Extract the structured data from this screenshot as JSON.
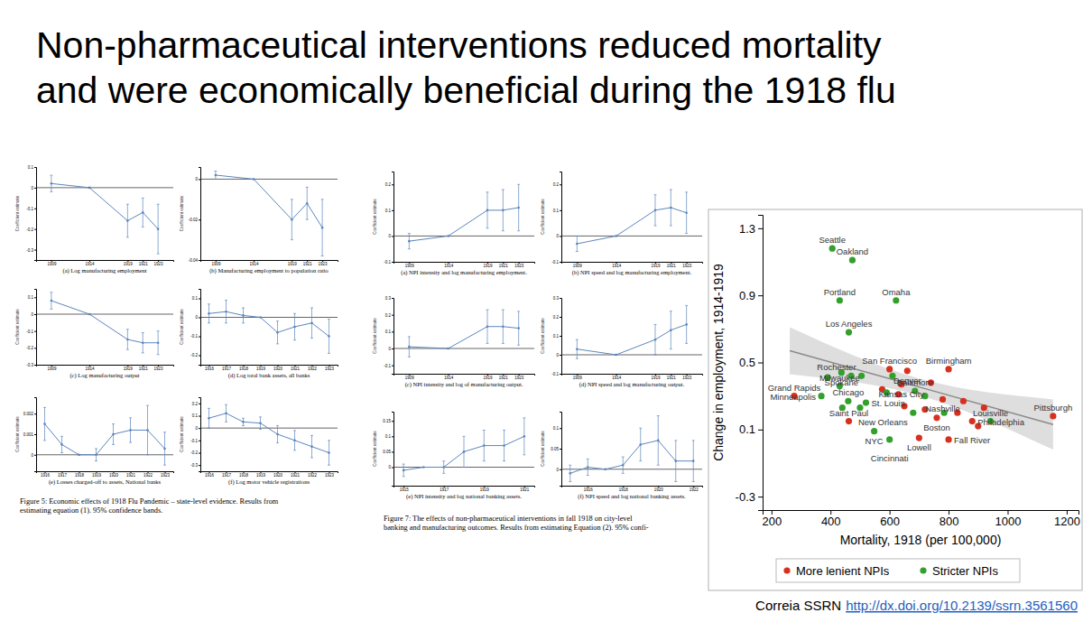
{
  "slide": {
    "title": [
      "Non-pharmaceutical interventions reduced mortality",
      "and were economically beneficial during the 1918 flu"
    ],
    "captions": [
      [
        "Figure 5: Economic effects of 1918 Flu Pandemic – state-level evidence. Results from",
        "estimating equation (1). 95% confidence bands."
      ],
      [
        "Figure 7: The effects of non-pharmaceutical interventions in fall 1918 on city-level",
        "banking and manufacturing outcomes. Results from estimating Equation (2). 95% confi-"
      ]
    ],
    "source": "Correia SSRN",
    "link": "http://dx.doi.org/10.2139/ssrn.3561560"
  },
  "chart_data": [
    {
      "type": "line",
      "title": "(a) Log manufacturing employment",
      "ylabel": "Coefficient estimate",
      "x": [
        1909,
        1914,
        1919,
        1921,
        1923
      ],
      "xlim": [
        1907,
        1925
      ],
      "xticks": [
        1909,
        1914,
        1919,
        1921,
        1923
      ],
      "ylim": [
        -0.35,
        0.1
      ],
      "yticks": [
        -0.3,
        -0.2,
        -0.1,
        0,
        0.1
      ],
      "reference_line": 0,
      "series": [
        {
          "color": "#5b86bd",
          "marker": "circle",
          "values": [
            0.02,
            0,
            -0.16,
            -0.12,
            -0.2
          ],
          "errors": [
            0.04,
            0,
            0.08,
            0.07,
            0.12
          ]
        }
      ]
    },
    {
      "type": "line",
      "title": "(b) Manufacturing employment to population ratio",
      "ylabel": "Coefficient estimate",
      "x": [
        1909,
        1914,
        1919,
        1921,
        1923
      ],
      "xlim": [
        1907,
        1925
      ],
      "xticks": [
        1909,
        1914,
        1919,
        1921,
        1923
      ],
      "ylim": [
        -0.04,
        0.006
      ],
      "yticks": [
        -0.04,
        -0.02,
        0
      ],
      "reference_line": 0,
      "series": [
        {
          "color": "#5b86bd",
          "marker": "circle",
          "values": [
            0.002,
            0,
            -0.02,
            -0.012,
            -0.024
          ],
          "errors": [
            0.002,
            0,
            0.01,
            0.008,
            0.014
          ]
        }
      ]
    },
    {
      "type": "line",
      "title": "(c) Log manufacturing output",
      "ylabel": "Coefficient estimate",
      "x": [
        1909,
        1914,
        1919,
        1921,
        1923
      ],
      "xlim": [
        1907,
        1925
      ],
      "xticks": [
        1909,
        1914,
        1919,
        1921,
        1923
      ],
      "ylim": [
        -0.3,
        0.15
      ],
      "yticks": [
        -0.3,
        -0.2,
        -0.1,
        0,
        0.1
      ],
      "reference_line": 0,
      "series": [
        {
          "color": "#5b86bd",
          "marker": "circle",
          "values": [
            0.08,
            0,
            -0.15,
            -0.17,
            -0.17
          ],
          "errors": [
            0.05,
            0,
            0.06,
            0.06,
            0.07
          ]
        }
      ]
    },
    {
      "type": "line",
      "title": "(d) Log total bank assets, all banks",
      "ylabel": "Coefficient estimate",
      "x": [
        1916,
        1917,
        1918,
        1919,
        1920,
        1921,
        1922,
        1923
      ],
      "xlim": [
        1915.5,
        1923.5
      ],
      "xticks": [
        1916,
        1917,
        1918,
        1919,
        1920,
        1921,
        1922,
        1923
      ],
      "ylim": [
        -0.25,
        0.15
      ],
      "yticks": [
        -0.2,
        -0.1,
        0,
        0.1
      ],
      "reference_line": 0,
      "series": [
        {
          "color": "#5b86bd",
          "marker": "circle",
          "values": [
            0.02,
            0.03,
            0.01,
            0,
            -0.08,
            -0.05,
            -0.03,
            -0.1
          ],
          "errors": [
            0.05,
            0.06,
            0.04,
            0,
            0.06,
            0.07,
            0.08,
            0.09
          ]
        }
      ]
    },
    {
      "type": "line",
      "title": "(e) Losses charged-off to assets, National banks",
      "ylabel": "Coefficient estimate",
      "x": [
        1916,
        1917,
        1918,
        1919,
        1920,
        1921,
        1922,
        1923
      ],
      "xlim": [
        1915.5,
        1923.5
      ],
      "xticks": [
        1916,
        1917,
        1918,
        1919,
        1920,
        1921,
        1922,
        1923
      ],
      "ylim": [
        -0.0008,
        0.0028
      ],
      "yticks": [
        0,
        0.001,
        0.002
      ],
      "reference_line": 0,
      "series": [
        {
          "color": "#5b86bd",
          "marker": "circle",
          "values": [
            0.0015,
            0.0005,
            0,
            0,
            0.001,
            0.0012,
            0.0012,
            0.0003
          ],
          "errors": [
            0.0008,
            0.0004,
            0,
            0.0003,
            0.0005,
            0.0006,
            0.0012,
            0.0008
          ]
        }
      ]
    },
    {
      "type": "line",
      "title": "(f) Log motor vehicle registrations",
      "ylabel": "Coefficient estimate",
      "x": [
        1916,
        1917,
        1918,
        1919,
        1920,
        1921,
        1922,
        1923
      ],
      "xlim": [
        1915.5,
        1923.5
      ],
      "xticks": [
        1916,
        1917,
        1918,
        1919,
        1920,
        1921,
        1922,
        1923
      ],
      "ylim": [
        -0.35,
        0.25
      ],
      "yticks": [
        -0.3,
        -0.2,
        -0.1,
        0,
        0.1,
        0.2
      ],
      "reference_line": 0,
      "series": [
        {
          "color": "#5b86bd",
          "marker": "circle",
          "values": [
            0.08,
            0.12,
            0.05,
            0.04,
            -0.05,
            -0.1,
            -0.15,
            -0.2
          ],
          "errors": [
            0.08,
            0.07,
            0.03,
            0.05,
            0.07,
            0.08,
            0.09,
            0.1
          ]
        }
      ]
    },
    {
      "type": "line",
      "title": "(a) NPI intensity and log manufacturing employment.",
      "ylabel": "Coefficient estimate",
      "x": [
        1909,
        1914,
        1919,
        1921,
        1923
      ],
      "xlim": [
        1907,
        1925
      ],
      "xticks": [
        1909,
        1914,
        1919,
        1921,
        1923
      ],
      "ylim": [
        -0.1,
        0.25
      ],
      "yticks": [
        -0.1,
        0,
        0.1,
        0.2
      ],
      "reference_line": 0,
      "series": [
        {
          "color": "#5b86bd",
          "marker": "circle",
          "values": [
            -0.02,
            0,
            0.1,
            0.1,
            0.11
          ],
          "errors": [
            0.03,
            0,
            0.07,
            0.08,
            0.09
          ]
        }
      ]
    },
    {
      "type": "line",
      "title": "(b) NPI speed and log manufacturing employment.",
      "ylabel": "Coefficient estimate",
      "x": [
        1909,
        1914,
        1919,
        1921,
        1923
      ],
      "xlim": [
        1907,
        1925
      ],
      "xticks": [
        1909,
        1914,
        1919,
        1921,
        1923
      ],
      "ylim": [
        -0.1,
        0.25
      ],
      "yticks": [
        -0.1,
        0,
        0.1,
        0.2
      ],
      "reference_line": 0,
      "series": [
        {
          "color": "#5b86bd",
          "marker": "circle",
          "values": [
            -0.03,
            0,
            0.1,
            0.11,
            0.09
          ],
          "errors": [
            0.03,
            0,
            0.06,
            0.07,
            0.08
          ]
        }
      ]
    },
    {
      "type": "line",
      "title": "(c) NPI intensity and log of manufacturing output.",
      "ylabel": "Coefficient estimate",
      "x": [
        1909,
        1914,
        1919,
        1921,
        1923
      ],
      "xlim": [
        1907,
        1925
      ],
      "xticks": [
        1909,
        1914,
        1919,
        1921,
        1923
      ],
      "ylim": [
        -0.15,
        0.3
      ],
      "yticks": [
        -0.1,
        0,
        0.1,
        0.2,
        0.3
      ],
      "reference_line": 0,
      "series": [
        {
          "color": "#5b86bd",
          "marker": "circle",
          "values": [
            0.01,
            0,
            0.13,
            0.13,
            0.12
          ],
          "errors": [
            0.06,
            0,
            0.1,
            0.1,
            0.1
          ]
        }
      ]
    },
    {
      "type": "line",
      "title": "(d) NPI speed and log manufacturing output.",
      "ylabel": "Coefficient estimate",
      "x": [
        1909,
        1914,
        1919,
        1921,
        1923
      ],
      "xlim": [
        1907,
        1925
      ],
      "xticks": [
        1909,
        1914,
        1919,
        1921,
        1923
      ],
      "ylim": [
        -0.1,
        0.3
      ],
      "yticks": [
        -0.1,
        0,
        0.1,
        0.2,
        0.3
      ],
      "reference_line": 0,
      "series": [
        {
          "color": "#5b86bd",
          "marker": "circle",
          "values": [
            0.03,
            0,
            0.08,
            0.13,
            0.16
          ],
          "errors": [
            0.05,
            0,
            0.08,
            0.1,
            0.1
          ]
        }
      ]
    },
    {
      "type": "line",
      "title": "(e) NPI intensity and log national banking assets.",
      "ylabel": "Coefficient estimate",
      "x": [
        1915,
        1916,
        1917,
        1918,
        1919,
        1920,
        1921
      ],
      "xlim": [
        1914.5,
        1921.5
      ],
      "xticks": [
        1915,
        1917,
        1919,
        1921
      ],
      "ylim": [
        -0.06,
        0.18
      ],
      "yticks": [
        0,
        0.05,
        0.1,
        0.15
      ],
      "reference_line": 0,
      "series": [
        {
          "color": "#5b86bd",
          "marker": "circle",
          "values": [
            -0.01,
            0,
            0,
            0.05,
            0.07,
            0.07,
            0.1
          ],
          "errors": [
            0.02,
            0,
            0.02,
            0.05,
            0.05,
            0.05,
            0.06
          ]
        }
      ]
    },
    {
      "type": "line",
      "title": "(f) NPI speed and log national banking assets.",
      "ylabel": "Coefficient estimate",
      "x": [
        1915,
        1916,
        1917,
        1918,
        1919,
        1920,
        1921,
        1922
      ],
      "xlim": [
        1914.5,
        1922.5
      ],
      "xticks": [
        1916,
        1918,
        1920,
        1922
      ],
      "ylim": [
        -0.04,
        0.14
      ],
      "yticks": [
        0,
        0.05,
        0.1
      ],
      "reference_line": 0,
      "series": [
        {
          "color": "#5b86bd",
          "marker": "circle",
          "values": [
            -0.01,
            0.005,
            0,
            0.01,
            0.06,
            0.07,
            0.02,
            0.02
          ],
          "errors": [
            0.02,
            0.02,
            0,
            0.02,
            0.04,
            0.06,
            0.05,
            0.05
          ]
        }
      ]
    },
    {
      "type": "scatter",
      "xlabel": "Mortality, 1918 (per 100,000)",
      "ylabel": "Change in employment, 1914-1919",
      "xlim": [
        170,
        1240
      ],
      "xticks": [
        200,
        400,
        600,
        800,
        1000,
        1200
      ],
      "ylim": [
        -0.38,
        1.38
      ],
      "yticks": [
        -0.3,
        0.1,
        0.5,
        0.9,
        1.3
      ],
      "grid": false,
      "legend": "bottom",
      "marker": "circle",
      "series": [
        {
          "name": "More lenient NPIs",
          "color": "#d7301f",
          "x": [
            277,
            600,
            660,
            800,
            640,
            780,
            462,
            760,
            880,
            1154,
            700,
            800,
            575,
            650,
            720,
            740,
            850,
            920,
            900,
            830,
            630
          ],
          "values": [
            0.3,
            0.46,
            0.45,
            0.46,
            0.37,
            0.28,
            0.15,
            0.17,
            0.15,
            0.18,
            0.05,
            0.04,
            0.34,
            0.24,
            0.22,
            0.38,
            0.27,
            0.23,
            0.12,
            0.2,
            0.31
          ],
          "point_labels": [
            "Grand Rapids",
            "San Francisco",
            "Denver",
            "Birmingham",
            "Kansas City",
            "Nashville",
            "Saint Paul",
            "Boston",
            "Philadelphia",
            "Pittsburgh",
            "Lowell",
            "Fall River",
            null,
            null,
            null,
            null,
            null,
            null,
            null,
            null,
            null
          ]
        },
        {
          "name": "Stricter NPIs",
          "color": "#33a02c",
          "x": [
            406,
            474,
            431,
            622,
            462,
            437,
            505,
            431,
            369,
            460,
            520,
            686,
            680,
            942,
            548,
            600,
            390,
            470,
            610,
            720,
            440,
            500,
            590,
            785
          ],
          "values": [
            1.18,
            1.11,
            0.87,
            0.87,
            0.68,
            0.44,
            0.42,
            0.36,
            0.3,
            0.27,
            0.26,
            0.33,
            0.2,
            0.15,
            0.09,
            0.04,
            0.41,
            0.42,
            0.42,
            0.3,
            0.23,
            0.23,
            0.32,
            0.2
          ],
          "point_labels": [
            "Seattle",
            "Oakland",
            "Portland",
            "Omaha",
            "Los Angeles",
            "Spokane",
            "Rochester",
            "Milwaukee",
            "Minneapolis",
            "Chicago",
            "St. Louis",
            "Baltimore",
            "New Orleans",
            "Louisville",
            "NYC",
            "Cincinnati",
            null,
            null,
            null,
            null,
            null,
            null,
            null,
            null
          ]
        }
      ],
      "fit": {
        "x": [
          262,
          708,
          1154
        ],
        "values": [
          0.57,
          0.35,
          0.13
        ],
        "lower": [
          0.43,
          0.3,
          -0.02
        ],
        "upper": [
          0.71,
          0.4,
          0.28
        ]
      }
    }
  ]
}
